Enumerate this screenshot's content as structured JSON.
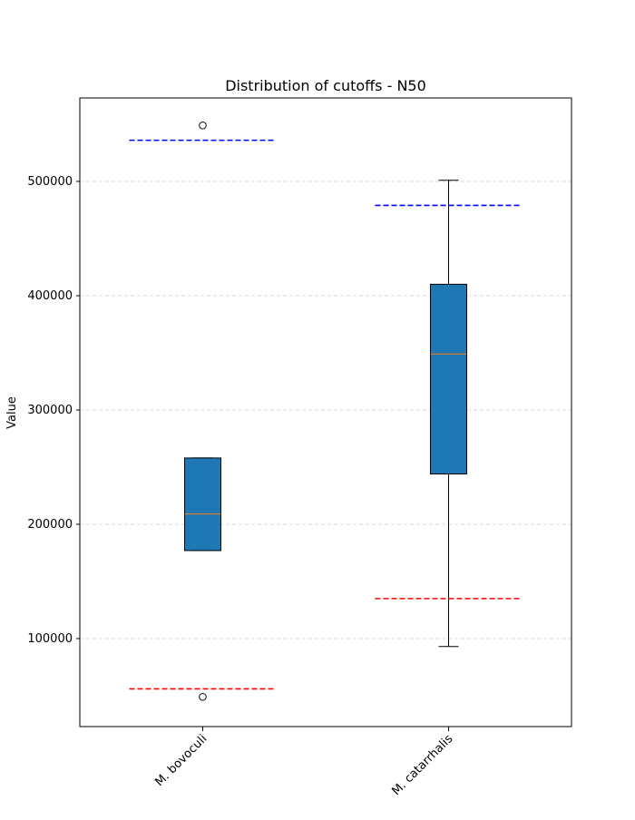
{
  "chart_data": {
    "type": "box",
    "title": "Distribution of cutoffs - N50",
    "xlabel": "",
    "ylabel": "Value",
    "ylim": [
      23000,
      573000
    ],
    "yticks": [
      100000,
      200000,
      300000,
      400000,
      500000
    ],
    "ytick_labels": [
      "100000",
      "200000",
      "300000",
      "400000",
      "500000"
    ],
    "grid": "horizontal dashed",
    "categories": [
      "M. bovoculi",
      "M. catarrhalis"
    ],
    "boxes": [
      {
        "category": "M. bovoculi",
        "whisker_low": 177000,
        "q1": 177000,
        "median": 209000,
        "q3": 258000,
        "whisker_high": 258000,
        "outliers": [
          49000,
          549000
        ],
        "upper_line": 536000,
        "lower_line": 56000
      },
      {
        "category": "M. catarrhalis",
        "whisker_low": 93000,
        "q1": 244000,
        "median": 349000,
        "q3": 410000,
        "whisker_high": 501000,
        "outliers": [],
        "upper_line": 479000,
        "lower_line": 135000
      }
    ],
    "colors": {
      "box_fill": "#1f77b4",
      "median": "#ff7f0e",
      "upper_line": "#0000ff",
      "lower_line": "#ff0000",
      "grid": "#cccccc"
    }
  }
}
